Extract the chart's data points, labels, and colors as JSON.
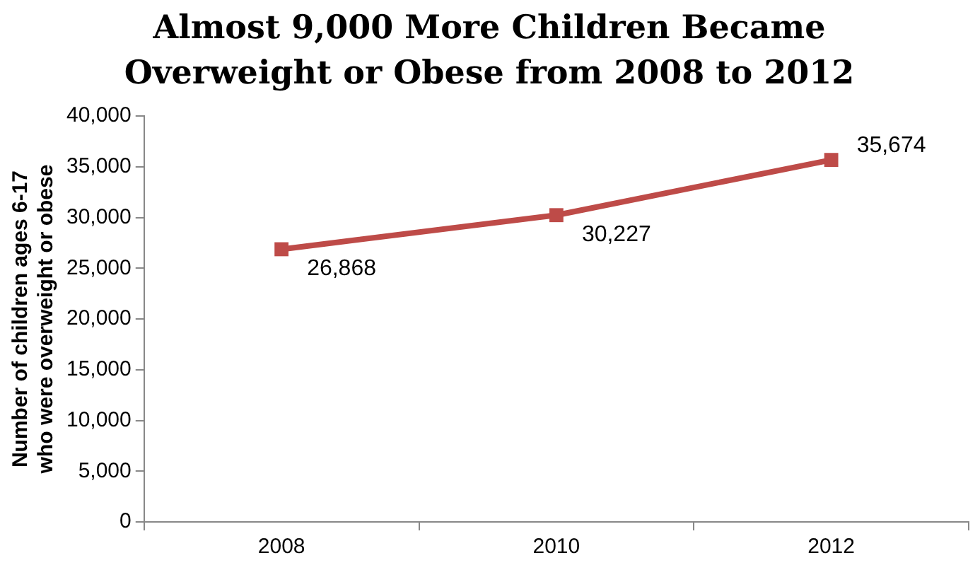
{
  "chart_data": {
    "type": "line",
    "title": "Almost 9,000 More Children Became Overweight or Obese from 2008 to 2012",
    "ylabel": "Number of children ages 6-17 who were overweight or obese",
    "categories": [
      "2008",
      "2010",
      "2012"
    ],
    "series": [
      {
        "color": "#be4b48",
        "values": [
          26868,
          30227,
          35674
        ],
        "value_labels": [
          "26,868",
          "30,227",
          "35,674"
        ]
      }
    ],
    "ylim": [
      0,
      40000
    ],
    "yticks": [
      0,
      {
        "value": 5000,
        "label": "5,000"
      },
      {
        "value": 10000,
        "label": "10,000"
      },
      {
        "value": 15000,
        "label": "15,000"
      },
      {
        "value": 20000,
        "label": "20,000"
      },
      {
        "value": 25000,
        "label": "25,000"
      },
      {
        "value": 30000,
        "label": "30,000"
      },
      {
        "value": 35000,
        "label": "35,000"
      },
      {
        "value": 40000,
        "label": "40,000"
      }
    ],
    "marker": "square",
    "line_style": "solid",
    "grid": false,
    "legend": false
  }
}
